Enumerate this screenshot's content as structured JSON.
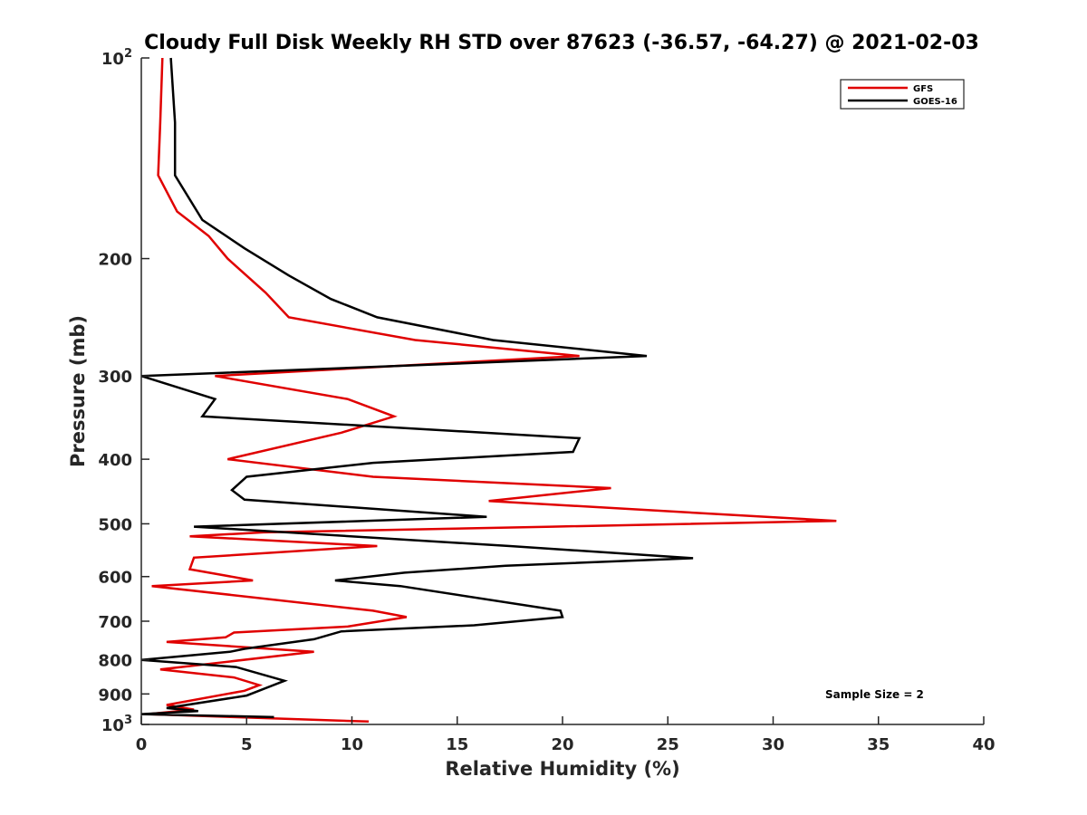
{
  "chart_data": {
    "type": "line",
    "title": "Cloudy Full Disk Weekly RH STD over 87623 (-36.57, -64.27) @ 2021-02-03",
    "xlabel": "Relative Humidity (%)",
    "ylabel": "Pressure (mb)",
    "xlim": [
      0,
      40
    ],
    "ylim": [
      100,
      1000
    ],
    "y_scale": "log",
    "y_reversed": true,
    "x_ticks": [
      "0",
      "5",
      "10",
      "15",
      "20",
      "25",
      "30",
      "35",
      "40"
    ],
    "y_ticks": [
      {
        "value": 100,
        "label": "10",
        "sup": "2"
      },
      {
        "value": 200,
        "label": "200"
      },
      {
        "value": 300,
        "label": "300"
      },
      {
        "value": 400,
        "label": "400"
      },
      {
        "value": 500,
        "label": "500"
      },
      {
        "value": 600,
        "label": "600"
      },
      {
        "value": 700,
        "label": "700"
      },
      {
        "value": 800,
        "label": "800"
      },
      {
        "value": 900,
        "label": "900"
      },
      {
        "value": 1000,
        "label": "10",
        "sup": "3"
      }
    ],
    "grid": false,
    "legend_position": "top-right",
    "annotation": "Sample Size = 2",
    "series": [
      {
        "name": "GFS",
        "color": "#e00000",
        "points": [
          [
            1.0,
            100
          ],
          [
            0.9,
            125
          ],
          [
            0.8,
            150
          ],
          [
            1.7,
            170
          ],
          [
            3.2,
            185
          ],
          [
            4.1,
            200
          ],
          [
            5.9,
            225
          ],
          [
            7.0,
            245
          ],
          [
            13.0,
            265
          ],
          [
            20.8,
            280
          ],
          [
            12.0,
            290
          ],
          [
            3.5,
            300
          ],
          [
            9.8,
            325
          ],
          [
            12.0,
            345
          ],
          [
            9.5,
            365
          ],
          [
            4.1,
            400
          ],
          [
            11.0,
            425
          ],
          [
            22.3,
            442
          ],
          [
            16.5,
            462
          ],
          [
            33.0,
            495
          ],
          [
            19.5,
            505
          ],
          [
            5.8,
            515
          ],
          [
            2.3,
            522
          ],
          [
            11.2,
            540
          ],
          [
            2.5,
            562
          ],
          [
            2.3,
            585
          ],
          [
            5.3,
            608
          ],
          [
            0.5,
            620
          ],
          [
            11.0,
            675
          ],
          [
            12.6,
            690
          ],
          [
            9.8,
            713
          ],
          [
            4.4,
            728
          ],
          [
            4.0,
            740
          ],
          [
            1.2,
            752
          ],
          [
            8.2,
            778
          ],
          [
            0.9,
            827
          ],
          [
            4.4,
            850
          ],
          [
            5.6,
            873
          ],
          [
            4.9,
            890
          ],
          [
            1.2,
            935
          ],
          [
            2.5,
            950
          ],
          [
            0.3,
            965
          ],
          [
            4.4,
            975
          ],
          [
            10.8,
            990
          ]
        ]
      },
      {
        "name": "GOES-16",
        "color": "#000000",
        "points": [
          [
            1.4,
            100
          ],
          [
            1.6,
            125
          ],
          [
            1.6,
            150
          ],
          [
            2.9,
            175
          ],
          [
            4.9,
            193
          ],
          [
            7.0,
            212
          ],
          [
            9.0,
            230
          ],
          [
            11.2,
            245
          ],
          [
            16.7,
            265
          ],
          [
            24.0,
            280
          ],
          [
            12.0,
            290
          ],
          [
            0.0,
            300
          ],
          [
            3.5,
            325
          ],
          [
            2.9,
            345
          ],
          [
            20.8,
            372
          ],
          [
            20.5,
            390
          ],
          [
            11.0,
            405
          ],
          [
            5.0,
            425
          ],
          [
            4.3,
            445
          ],
          [
            4.9,
            460
          ],
          [
            16.4,
            488
          ],
          [
            2.5,
            505
          ],
          [
            17.5,
            540
          ],
          [
            26.2,
            563
          ],
          [
            17.3,
            578
          ],
          [
            12.5,
            592
          ],
          [
            9.2,
            608
          ],
          [
            12.3,
            620
          ],
          [
            19.9,
            675
          ],
          [
            20.0,
            690
          ],
          [
            15.8,
            710
          ],
          [
            9.5,
            725
          ],
          [
            8.2,
            745
          ],
          [
            4.9,
            770
          ],
          [
            4.2,
            778
          ],
          [
            0.0,
            800
          ],
          [
            4.5,
            820
          ],
          [
            6.8,
            860
          ],
          [
            5.0,
            905
          ],
          [
            1.2,
            945
          ],
          [
            2.7,
            955
          ],
          [
            0.0,
            965
          ],
          [
            6.3,
            975
          ]
        ]
      }
    ]
  }
}
